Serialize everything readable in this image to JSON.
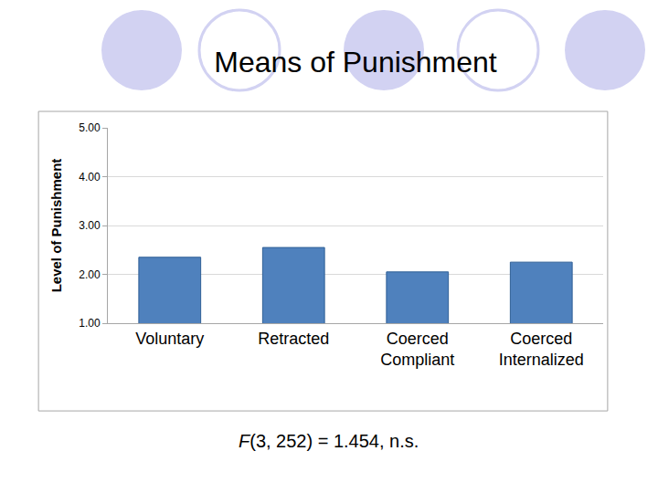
{
  "chart_data": {
    "type": "bar",
    "title": "Means of Punishment",
    "ylabel": "Level of Punishment",
    "categories": [
      "Voluntary",
      "Retracted",
      "Coerced Compliant",
      "Coerced Internalized"
    ],
    "values": [
      2.35,
      2.55,
      2.05,
      2.25
    ],
    "color": "#4f81bd",
    "ylim": [
      1,
      5
    ],
    "yticks": [
      {
        "value": 1,
        "label": "1.00"
      },
      {
        "value": 2,
        "label": "2.00"
      },
      {
        "value": 3,
        "label": "3.00"
      },
      {
        "value": 4,
        "label": "4.00"
      },
      {
        "value": 5,
        "label": "5.00"
      }
    ],
    "grid": true,
    "annotations": [
      "F(3, 252) = 1.454, n.s."
    ]
  }
}
